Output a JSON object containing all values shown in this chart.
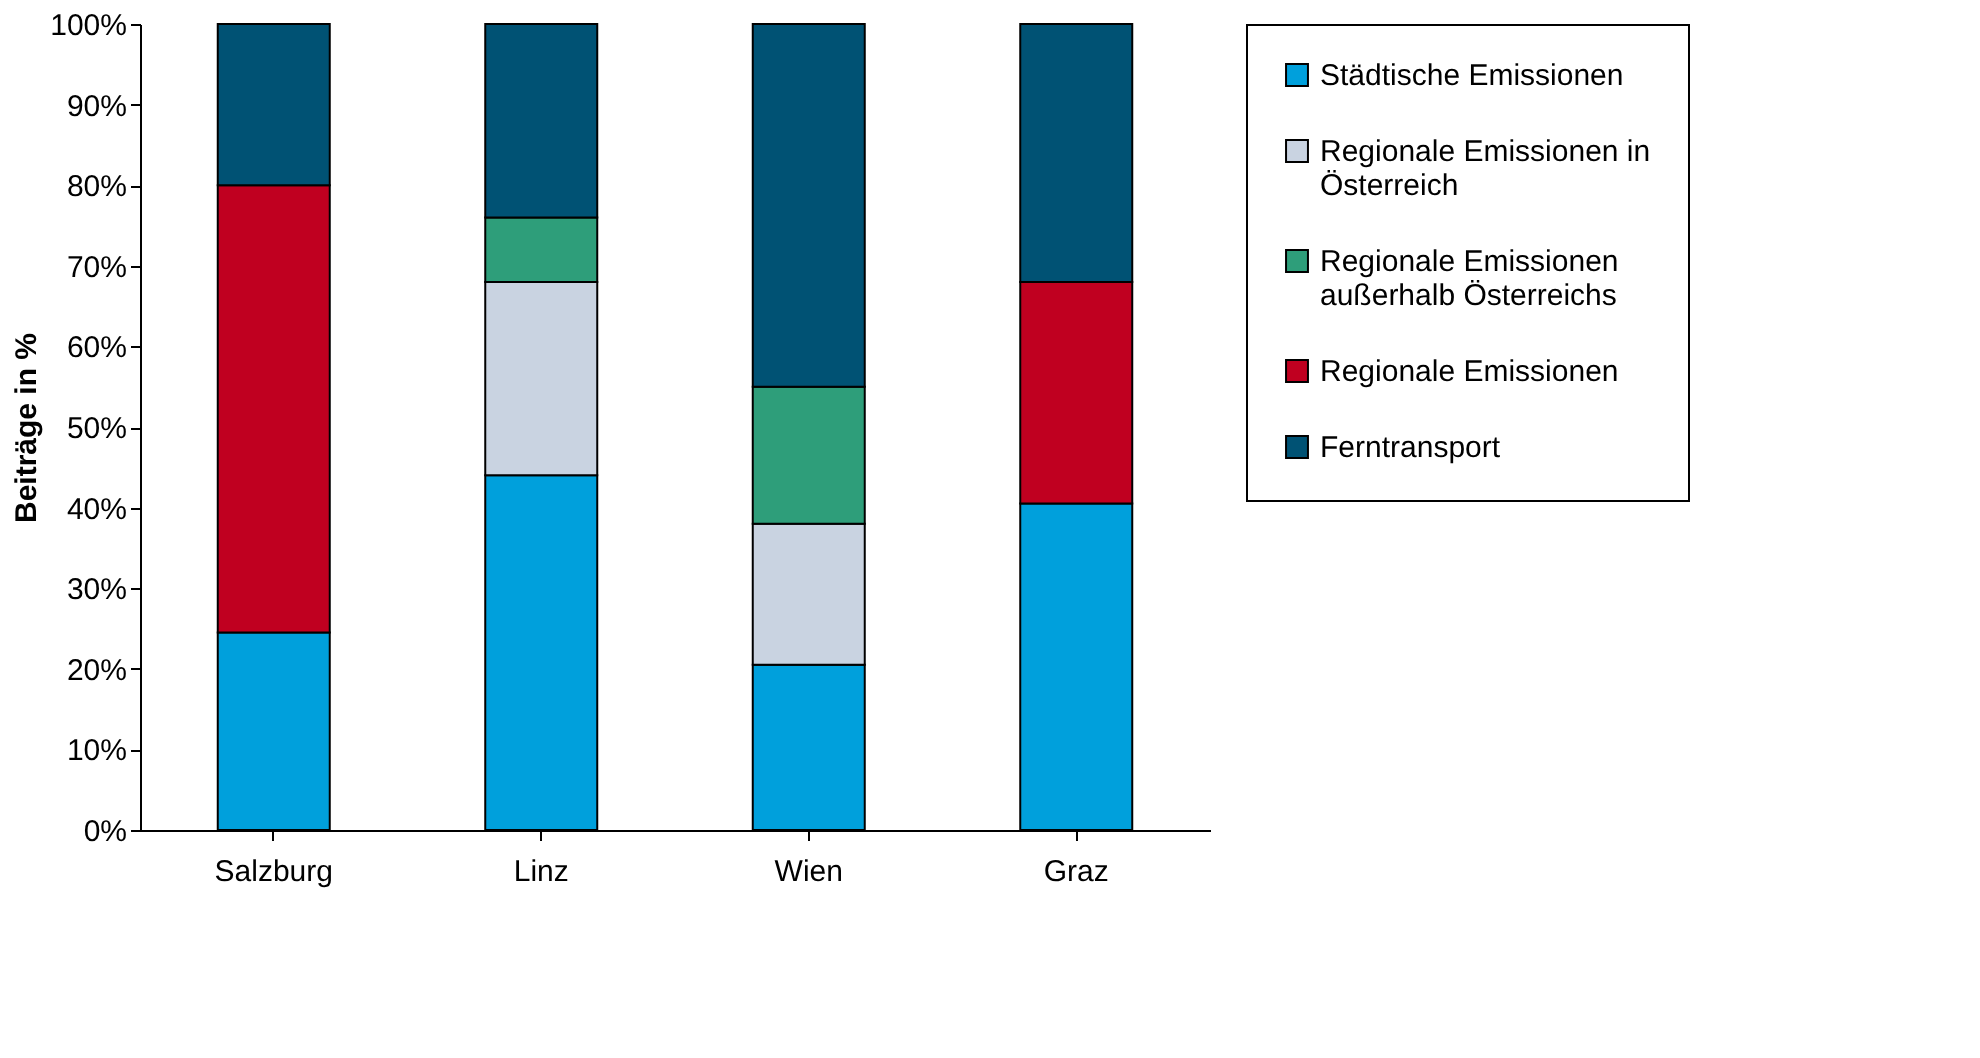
{
  "chart_data": {
    "type": "bar",
    "stacked": true,
    "ylabel": "Beiträge in %",
    "categories": [
      "Salzburg",
      "Linz",
      "Wien",
      "Graz"
    ],
    "series": [
      {
        "name": "Städtische Emissionen",
        "color": "#00a0dc",
        "values": [
          24.5,
          44,
          20.5,
          40.5
        ]
      },
      {
        "name": "Regionale Emissionen in Österreich",
        "color": "#c9d3e1",
        "values": [
          null,
          24,
          17.5,
          null
        ]
      },
      {
        "name": "Regionale Emissionen außerhalb Österreichs",
        "color": "#2e9e7a",
        "values": [
          null,
          8,
          17,
          null
        ]
      },
      {
        "name": "Regionale Emissionen",
        "color": "#c00020",
        "values": [
          55.5,
          null,
          null,
          27.5
        ]
      },
      {
        "name": "Ferntransport",
        "color": "#005274",
        "values": [
          20,
          24,
          45,
          32
        ]
      }
    ],
    "ylim": [
      0,
      100
    ],
    "yticks": [
      {
        "value": 0,
        "label": "0%"
      },
      {
        "value": 10,
        "label": "10%"
      },
      {
        "value": 20,
        "label": "20%"
      },
      {
        "value": 30,
        "label": "30%"
      },
      {
        "value": 40,
        "label": "40%"
      },
      {
        "value": 50,
        "label": "50%"
      },
      {
        "value": 60,
        "label": "60%"
      },
      {
        "value": 70,
        "label": "70%"
      },
      {
        "value": 80,
        "label": "80%"
      },
      {
        "value": 90,
        "label": "90%"
      },
      {
        "value": 100,
        "label": "100%"
      }
    ],
    "grid": false,
    "legend": "right"
  }
}
